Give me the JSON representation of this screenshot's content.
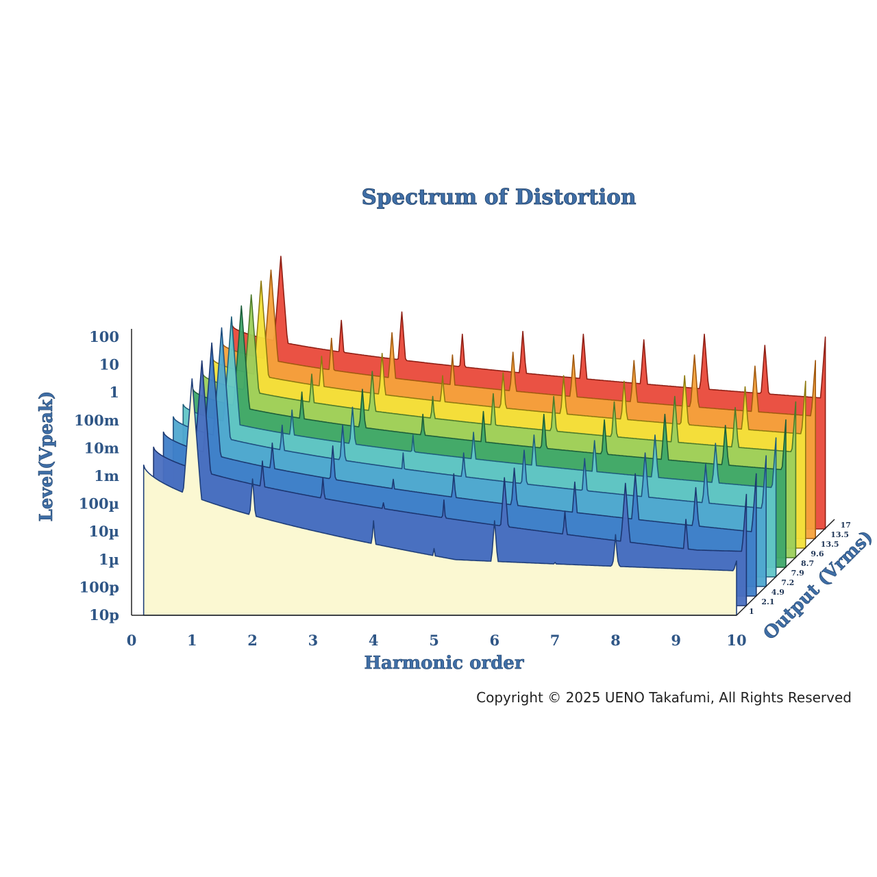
{
  "chart_data": {
    "type": "area",
    "subtype": "3d-waterfall",
    "title": "Spectrum of Distortion",
    "xlabel": "Harmonic order",
    "ylabel": "Level(Vpeak)",
    "zlabel": "Output (Vrms)",
    "x_ticks": [
      "0",
      "1",
      "2",
      "3",
      "4",
      "5",
      "6",
      "7",
      "8",
      "9",
      "10"
    ],
    "xlim": [
      0,
      10
    ],
    "y_ticks": [
      "100",
      "10",
      "1",
      "100m",
      "10m",
      "1m",
      "100µ",
      "10µ",
      "1µ",
      "100p",
      "10p"
    ],
    "y_tick_log10": [
      2,
      1,
      0,
      -1,
      -2,
      -3,
      -4,
      -5,
      -6,
      -10,
      -11
    ],
    "z_ticks": [
      "1",
      "2.1",
      "4.9",
      "7.2",
      "7.9",
      "8.7",
      "9.6",
      "13.5",
      "13.5",
      "17"
    ],
    "series": [
      {
        "name": "1",
        "color": "#fbf8d2",
        "edge": "#1f3f7a",
        "harmonics_log10": [
          0.5,
          -3.1,
          -5.0,
          -4.6,
          -5.6,
          -4.6,
          -6.4,
          -5.1,
          -7.6,
          -6.2
        ],
        "floor_log10": [
          -2.6,
          -7.6
        ]
      },
      {
        "name": "2.1",
        "color": "#4a6fc0",
        "edge": "#1c3570",
        "harmonics_log10": [
          0.8,
          -2.8,
          -3.4,
          -4.3,
          -4.2,
          -3.4,
          -4.6,
          -3.6,
          -4.9,
          -4.0
        ],
        "floor_log10": [
          -2.3,
          -6.2
        ]
      },
      {
        "name": "4.9",
        "color": "#3f7ec8",
        "edge": "#1c3a72",
        "harmonics_log10": [
          1.1,
          -2.5,
          -2.6,
          -3.8,
          -3.6,
          -3.4,
          -3.9,
          -3.6,
          -4.1,
          -3.6
        ],
        "floor_log10": [
          -2.1,
          -5.7
        ]
      },
      {
        "name": "7.2",
        "color": "#4fa8d0",
        "edge": "#1f4f80",
        "harmonics_log10": [
          1.3,
          -2.2,
          -2.2,
          -3.2,
          -3.2,
          -3.1,
          -3.4,
          -3.2,
          -3.6,
          -3.3
        ],
        "floor_log10": [
          -1.9,
          -5.2
        ]
      },
      {
        "name": "7.9",
        "color": "#62c6c8",
        "edge": "#1f5f7a",
        "harmonics_log10": [
          1.35,
          -2.0,
          -1.9,
          -2.9,
          -2.8,
          -2.9,
          -3.1,
          -2.9,
          -3.2,
          -3.0
        ],
        "floor_log10": [
          -1.8,
          -4.8
        ]
      },
      {
        "name": "8.7",
        "color": "#3fa86a",
        "edge": "#1c5e3a",
        "harmonics_log10": [
          1.4,
          -1.7,
          -1.6,
          -2.5,
          -2.4,
          -2.5,
          -2.7,
          -2.5,
          -2.9,
          -2.7
        ],
        "floor_log10": [
          -1.6,
          -4.5
        ]
      },
      {
        "name": "9.6",
        "color": "#9ccf5c",
        "edge": "#4d7a2a",
        "harmonics_log10": [
          1.45,
          -1.4,
          -1.3,
          -2.2,
          -2.1,
          -2.2,
          -2.4,
          -2.2,
          -2.6,
          -2.4
        ],
        "floor_log10": [
          -1.4,
          -4.2
        ]
      },
      {
        "name": "13.5",
        "color": "#f3e23a",
        "edge": "#8f7a10",
        "harmonics_log10": [
          1.6,
          -1.1,
          -1.0,
          -1.8,
          -1.7,
          -1.8,
          -2.0,
          -1.8,
          -2.2,
          -2.0
        ],
        "floor_log10": [
          -1.2,
          -3.9
        ]
      },
      {
        "name": "13.5",
        "color": "#f5a23c",
        "edge": "#a25a10",
        "harmonics_log10": [
          1.65,
          -0.8,
          -0.6,
          -1.4,
          -1.3,
          -1.4,
          -1.6,
          -1.4,
          -1.8,
          -1.6
        ],
        "floor_log10": [
          -1.0,
          -3.6
        ]
      },
      {
        "name": "17",
        "color": "#e9493a",
        "edge": "#8f1f14",
        "harmonics_log10": [
          1.8,
          -0.5,
          -0.2,
          -1.0,
          -0.9,
          -1.0,
          -1.2,
          -1.0,
          -1.4,
          -1.1
        ],
        "floor_log10": [
          -0.7,
          -3.3
        ]
      }
    ]
  },
  "copyright": "Copyright © 2025 UENO Takafumi, All Rights Reserved"
}
